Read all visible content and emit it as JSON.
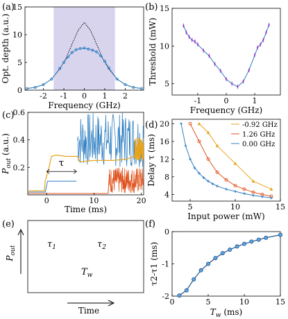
{
  "panels": {
    "a": {
      "label": "(a)"
    },
    "b": {
      "label": "(b)"
    },
    "c": {
      "label": "(c)"
    },
    "d": {
      "label": "(d)"
    },
    "e": {
      "label": "(e)"
    },
    "f": {
      "label": "(f)"
    }
  },
  "colors": {
    "blue": "#2f7fc1",
    "orange": "#e8a31c",
    "red": "#e0531e",
    "purple": "#a035c8",
    "shade": "#d9d4ee",
    "navy": "#1f4e8c"
  },
  "chart_data": [
    {
      "id": "a",
      "type": "line",
      "title": "",
      "xlabel": "Frequency (GHz)",
      "ylabel": "Opt. depth (a.u.)",
      "xlim": [
        -2.9,
        2.9
      ],
      "ylim": [
        0,
        15
      ],
      "xticks": [
        "-2",
        "-1",
        "0",
        "1",
        "2"
      ],
      "yticks": [
        "0",
        "5",
        "10",
        "15"
      ],
      "shaded_band": [
        -1.5,
        1.5
      ],
      "series": [
        {
          "style": "dotted",
          "x": [
            -2.8,
            -2.4,
            -2.0,
            -1.6,
            -1.2,
            -0.9,
            -0.6,
            -0.3,
            0,
            0.3,
            0.6,
            0.9,
            1.2,
            1.6,
            2.0,
            2.4,
            2.8
          ],
          "y": [
            0.3,
            0.5,
            1.0,
            2.0,
            3.8,
            5.7,
            8.3,
            10.8,
            12.2,
            10.8,
            8.3,
            5.7,
            3.8,
            2.0,
            1.0,
            0.5,
            0.3
          ]
        },
        {
          "style": "markers",
          "x": [
            -2.8,
            -2.4,
            -2.0,
            -1.6,
            -1.2,
            -1.0,
            -0.8,
            -0.6,
            -0.4,
            -0.2,
            0,
            0.2,
            0.4,
            0.6,
            0.8,
            1.0,
            1.2,
            1.6,
            2.0,
            2.4,
            2.8
          ],
          "y": [
            0.3,
            0.5,
            1.0,
            2.0,
            3.9,
            5.0,
            6.0,
            6.8,
            7.3,
            7.5,
            7.6,
            7.4,
            7.2,
            6.9,
            6.2,
            5.2,
            4.0,
            2.0,
            1.0,
            0.5,
            0.3
          ]
        }
      ]
    },
    {
      "id": "b",
      "type": "line",
      "title": "",
      "xlabel": "Frequency (GHz)",
      "ylabel": "Threshold (mW)",
      "xlim": [
        -1.9,
        1.9
      ],
      "ylim": [
        3.5,
        15
      ],
      "xticks": [
        "-1",
        "0",
        "1"
      ],
      "yticks": [
        "5",
        "10",
        "15"
      ],
      "series": [
        {
          "x": [
            -1.5,
            -1.4,
            -1.3,
            -1.2,
            -1.1,
            -1.0,
            -0.8,
            -0.6,
            -0.4,
            -0.2,
            0,
            0.2,
            0.4,
            0.6,
            0.8,
            1.0,
            1.1,
            1.2,
            1.3,
            1.4,
            1.5
          ],
          "y": [
            12.7,
            11.8,
            11.2,
            10.8,
            10.6,
            10.2,
            9.4,
            8.7,
            7.6,
            6.7,
            5.6,
            5.0,
            4.6,
            5.3,
            6.8,
            8.8,
            9.8,
            10.2,
            10.8,
            11.8,
            12.8
          ]
        }
      ]
    },
    {
      "id": "c",
      "type": "line",
      "title": "",
      "xlabel": "Time (ms)",
      "ylabel": "P_out (a.u.)",
      "xlim": [
        -4,
        20.5
      ],
      "ylim": [
        0,
        0.6
      ],
      "xticks": [
        "0",
        "10",
        "20"
      ],
      "yticks": [
        "0.2",
        "0.4",
        "0.6"
      ],
      "annotation": "τ",
      "series": [
        {
          "name": "orange",
          "x": [
            -4,
            -0.5,
            -0.3,
            0.5,
            1.0,
            2.0,
            4.0,
            6.5,
            7.0,
            10,
            14,
            17,
            18.5,
            19.2,
            20
          ],
          "y": [
            0.03,
            0.03,
            0.1,
            0.2,
            0.28,
            0.29,
            0.28,
            0.28,
            0.24,
            0.25,
            0.25,
            0.26,
            0.28,
            0.35,
            0.4
          ]
        },
        {
          "name": "blue",
          "x": [
            -4,
            -0.3,
            0.2,
            6.3,
            6.5,
            7,
            20
          ],
          "y": [
            0.02,
            0.02,
            0.1,
            0.1,
            0.34,
            0.36,
            0.38
          ]
        },
        {
          "name": "red",
          "x": [
            -4,
            13,
            13.2,
            13.5,
            20
          ],
          "y": [
            0.01,
            0.01,
            0.12,
            0.2,
            0.2
          ]
        }
      ]
    },
    {
      "id": "d",
      "type": "line",
      "title": "",
      "xlabel": "Input power (mW)",
      "ylabel": "Delay τ (ms)",
      "xlim": [
        3,
        15
      ],
      "ylim": [
        2.5,
        21
      ],
      "xticks": [
        "5",
        "10",
        "15"
      ],
      "yticks": [
        "4",
        "8",
        "12",
        "16",
        "20"
      ],
      "legend_position": "top-right",
      "series": [
        {
          "name": "-0.92 GHz",
          "x": [
            6,
            7,
            8,
            10,
            12,
            14
          ],
          "y": [
            20,
            18,
            15,
            11,
            7,
            5.2
          ]
        },
        {
          "name": "1.26 GHz",
          "x": [
            5,
            6,
            7,
            8,
            9,
            10,
            11,
            12,
            13,
            14
          ],
          "y": [
            20,
            16,
            12,
            9,
            7.3,
            6,
            5.2,
            4.5,
            4,
            3.6
          ]
        },
        {
          "name": "0.00 GHz",
          "x": [
            4,
            4.5,
            5,
            5.5,
            6,
            6.5,
            7,
            7.5,
            8,
            9,
            10,
            11,
            12,
            13,
            14
          ],
          "y": [
            20,
            15,
            12,
            10,
            8.8,
            7.8,
            7,
            6.4,
            5.9,
            5.2,
            4.7,
            4.2,
            3.8,
            3.5,
            3.2
          ]
        }
      ]
    },
    {
      "id": "e",
      "type": "diagram",
      "ylabel": "P_out",
      "xlabel": "Time",
      "symbols": [
        "τ1",
        "τ2",
        "Tw"
      ]
    },
    {
      "id": "f",
      "type": "line",
      "title": "",
      "xlabel": "Tw (ms)",
      "ylabel": "τ2-τ1 (ms)",
      "xlim": [
        0,
        15
      ],
      "ylim": [
        -2,
        0
      ],
      "xticks": [
        "0",
        "5",
        "10",
        "15"
      ],
      "yticks": [
        "0",
        "-1",
        "-2"
      ],
      "series": [
        {
          "x": [
            1,
            2,
            3,
            4,
            5,
            6,
            7,
            8,
            9,
            10,
            11,
            12,
            13,
            15
          ],
          "y": [
            -1.98,
            -1.82,
            -1.48,
            -1.2,
            -1.0,
            -0.82,
            -0.67,
            -0.56,
            -0.46,
            -0.38,
            -0.31,
            -0.25,
            -0.19,
            -0.1
          ]
        }
      ]
    }
  ]
}
